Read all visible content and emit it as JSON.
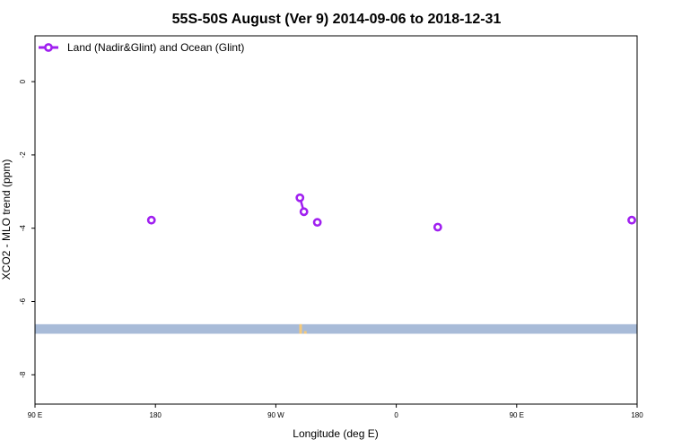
{
  "chart_data": {
    "type": "line",
    "title": "55S-50S August (Ver 9)   2014-09-06 to 2018-12-31",
    "xlabel": "Longitude (deg E)",
    "ylabel": "XCO2 - MLO trend (ppm)",
    "x_ticks": [
      {
        "value": 90,
        "label": "90 E"
      },
      {
        "value": 180,
        "label": "180"
      },
      {
        "value": 270,
        "label": "90 W"
      },
      {
        "value": 360,
        "label": "0"
      },
      {
        "value": 450,
        "label": "90 E"
      },
      {
        "value": 540,
        "label": "180"
      }
    ],
    "y_ticks": [
      0,
      -2,
      -4,
      -6,
      -8
    ],
    "xlim": [
      90,
      540
    ],
    "ylim": [
      -8.8,
      1.25
    ],
    "grid": false,
    "legend_position": "top-left",
    "series": [
      {
        "name": "Land (Nadir&Glint) and Ocean (Glint)",
        "color": "#a020f0",
        "points": [
          {
            "x": 177,
            "y": -3.78
          },
          {
            "x": 288,
            "y": -3.17
          },
          {
            "x": 291,
            "y": -3.55
          },
          {
            "x": 301,
            "y": -3.84
          },
          {
            "x": 391,
            "y": -3.97
          },
          {
            "x": 536,
            "y": -3.78
          }
        ],
        "connected_pairs": [
          [
            1,
            2
          ]
        ]
      }
    ],
    "map_overlay": {
      "ocean_color": "#a8bbd8",
      "land_color": "#f5c97a",
      "y_range": [
        -6.62,
        -6.88
      ]
    }
  }
}
